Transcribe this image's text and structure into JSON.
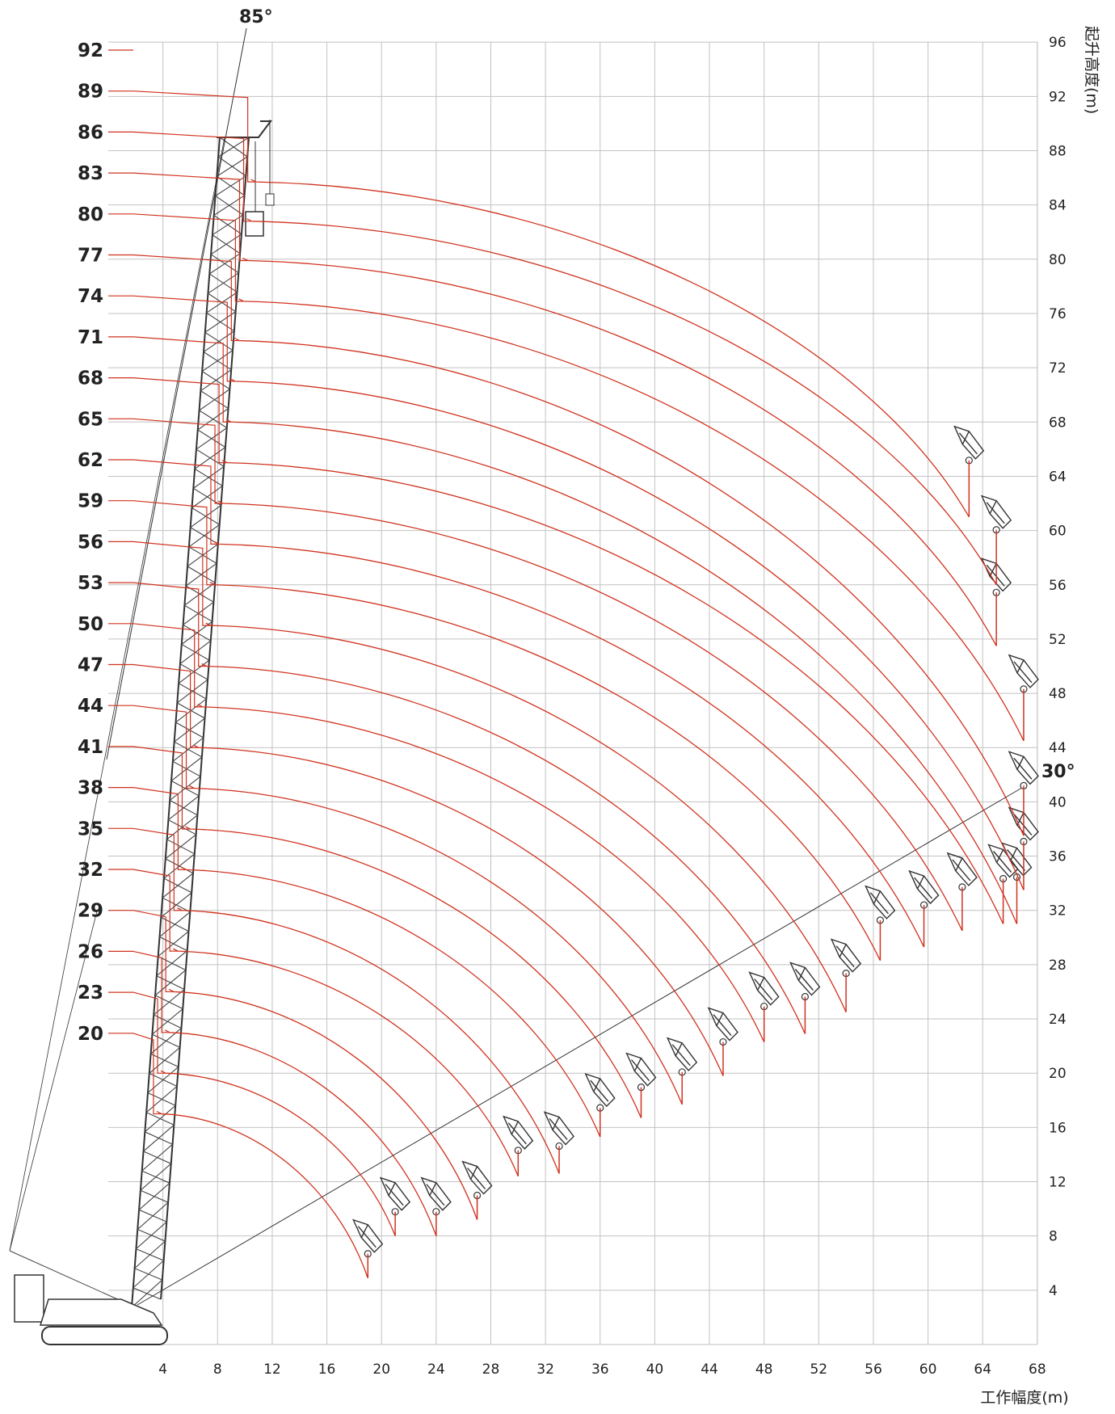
{
  "chart_data": {
    "type": "line",
    "title": "",
    "xlabel": "工作幅度(m)",
    "ylabel": "起升高度(m)",
    "x_ticks": [
      4,
      8,
      12,
      16,
      20,
      24,
      28,
      32,
      36,
      40,
      44,
      48,
      52,
      56,
      60,
      64,
      68
    ],
    "y_ticks": [
      4,
      8,
      12,
      16,
      20,
      24,
      28,
      32,
      36,
      40,
      44,
      48,
      52,
      56,
      60,
      64,
      68,
      72,
      76,
      80,
      84,
      88,
      92,
      96
    ],
    "xlim": [
      0,
      68
    ],
    "ylim": [
      0,
      96
    ],
    "grid": true,
    "boom_angle_max": "85°",
    "boom_angle_min": "30°",
    "boom_lengths": [
      92,
      89,
      86,
      83,
      80,
      77,
      74,
      71,
      68,
      65,
      62,
      59,
      56,
      53,
      50,
      47,
      44,
      41,
      38,
      35,
      32,
      29,
      26,
      23,
      20
    ],
    "series": [
      {
        "boom_length": 89,
        "start": [
          10.8,
          85.7
        ],
        "end": [
          63.0,
          61.0
        ]
      },
      {
        "boom_length": 86,
        "start": [
          10.5,
          82.8
        ],
        "end": [
          65.0,
          56.0
        ]
      },
      {
        "boom_length": 83,
        "start": [
          10.2,
          79.9
        ],
        "end": [
          65.0,
          51.5
        ]
      },
      {
        "boom_length": 80,
        "start": [
          9.9,
          76.9
        ],
        "end": [
          67.0,
          44.5
        ]
      },
      {
        "boom_length": 77,
        "start": [
          9.6,
          74.0
        ],
        "end": [
          67.0,
          37.5
        ]
      },
      {
        "boom_length": 74,
        "start": [
          9.3,
          71.0
        ],
        "end": [
          67.0,
          33.5
        ]
      },
      {
        "boom_length": 71,
        "start": [
          9.0,
          68.0
        ],
        "end": [
          66.5,
          31.0
        ]
      },
      {
        "boom_length": 68,
        "start": [
          8.7,
          65.0
        ],
        "end": [
          65.5,
          31.0
        ]
      },
      {
        "boom_length": 65,
        "start": [
          8.4,
          62.0
        ],
        "end": [
          62.5,
          30.5
        ]
      },
      {
        "boom_length": 62,
        "start": [
          8.1,
          59.0
        ],
        "end": [
          59.7,
          29.3
        ]
      },
      {
        "boom_length": 59,
        "start": [
          7.8,
          56.0
        ],
        "end": [
          56.5,
          28.3
        ]
      },
      {
        "boom_length": 56,
        "start": [
          7.5,
          53.0
        ],
        "end": [
          54.0,
          24.5
        ]
      },
      {
        "boom_length": 53,
        "start": [
          7.2,
          50.0
        ],
        "end": [
          51.0,
          22.9
        ]
      },
      {
        "boom_length": 50,
        "start": [
          6.9,
          47.0
        ],
        "end": [
          48.0,
          22.3
        ]
      },
      {
        "boom_length": 47,
        "start": [
          6.6,
          44.0
        ],
        "end": [
          45.0,
          19.8
        ]
      },
      {
        "boom_length": 44,
        "start": [
          6.3,
          41.0
        ],
        "end": [
          42.0,
          17.7
        ]
      },
      {
        "boom_length": 41,
        "start": [
          6.0,
          38.0
        ],
        "end": [
          39.0,
          16.7
        ]
      },
      {
        "boom_length": 38,
        "start": [
          5.7,
          35.0
        ],
        "end": [
          36.0,
          15.3
        ]
      },
      {
        "boom_length": 35,
        "start": [
          5.4,
          32.0
        ],
        "end": [
          33.0,
          12.6
        ]
      },
      {
        "boom_length": 32,
        "start": [
          5.1,
          29.0
        ],
        "end": [
          30.0,
          12.4
        ]
      },
      {
        "boom_length": 29,
        "start": [
          4.8,
          26.0
        ],
        "end": [
          27.0,
          9.2
        ]
      },
      {
        "boom_length": 26,
        "start": [
          4.5,
          23.0
        ],
        "end": [
          24.0,
          8.0
        ]
      },
      {
        "boom_length": 23,
        "start": [
          4.2,
          20.0
        ],
        "end": [
          21.0,
          8.0
        ]
      },
      {
        "boom_length": 20,
        "start": [
          3.9,
          17.0
        ],
        "end": [
          19.0,
          4.9
        ]
      }
    ]
  }
}
